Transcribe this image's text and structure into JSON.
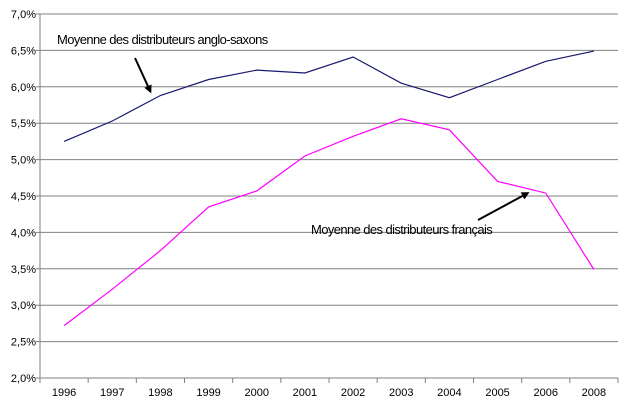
{
  "chart_data": {
    "type": "line",
    "categories": [
      "1996",
      "1997",
      "1998",
      "1999",
      "2000",
      "2001",
      "2002",
      "2003",
      "2004",
      "2005",
      "2006",
      "2008"
    ],
    "series": [
      {
        "name": "Moyenne des distributeurs anglo-saxons",
        "color": "#1a1a6e",
        "values": [
          5.25,
          5.53,
          5.88,
          6.1,
          6.23,
          6.19,
          6.41,
          6.05,
          5.85,
          6.1,
          6.35,
          6.49
        ]
      },
      {
        "name": "Moyenne des distributeurs français",
        "color": "#ff00ff",
        "values": [
          2.72,
          3.22,
          3.75,
          4.35,
          4.57,
          5.05,
          5.32,
          5.56,
          5.41,
          4.7,
          4.54,
          3.49
        ]
      }
    ],
    "ylim": [
      2.0,
      7.0
    ],
    "yticks": [
      "2,0%",
      "2,5%",
      "3,0%",
      "3,5%",
      "4,0%",
      "4,5%",
      "5,0%",
      "5,5%",
      "6,0%",
      "6,5%",
      "7,0%"
    ],
    "grid": true,
    "xlabel": "",
    "ylabel": "",
    "title": "",
    "annotations": [
      {
        "text": "Moyenne des distributeurs anglo-saxons",
        "series": 0,
        "arrow_to_category": "1998"
      },
      {
        "text": "Moyenne des distributeurs français",
        "series": 1,
        "arrow_to_category": "2006"
      }
    ]
  }
}
